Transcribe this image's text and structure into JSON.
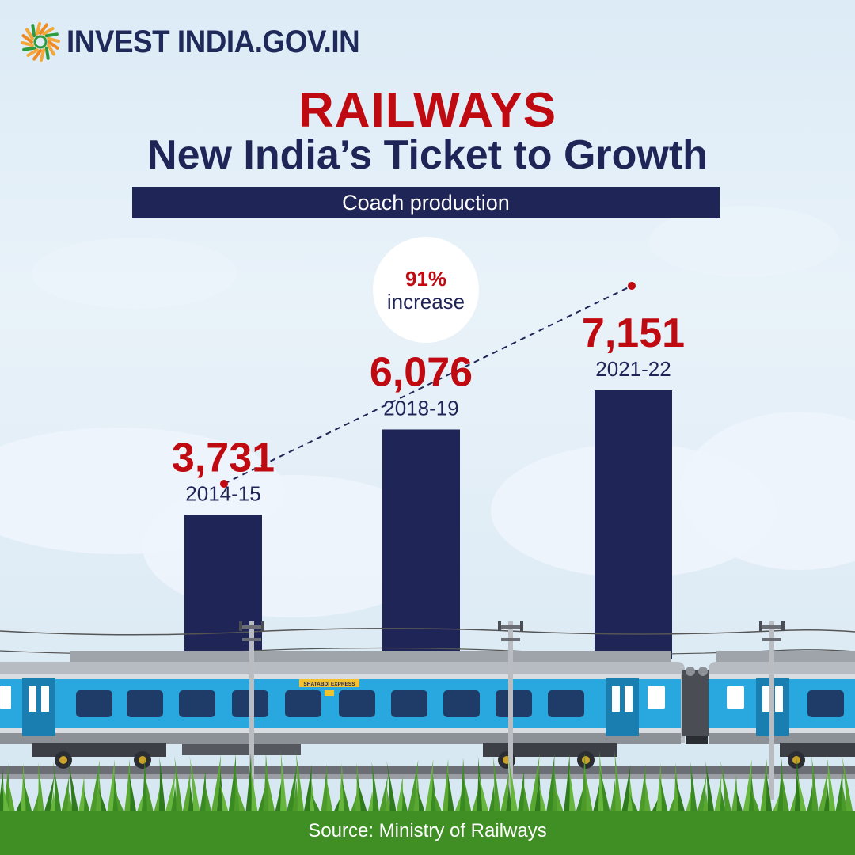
{
  "header": {
    "logo_text": "INVEST INDIA.GOV.IN",
    "logo_icon": "sun-logo-icon"
  },
  "title": "RAILWAYS",
  "subtitle": "New India’s Ticket to Growth",
  "banner": "Coach production",
  "badge": {
    "percent": "91%",
    "text": "increase"
  },
  "chart_data": {
    "type": "bar",
    "title": "Coach production",
    "categories": [
      "2014-15",
      "2018-19",
      "2021-22"
    ],
    "values": [
      3731,
      6076,
      7151
    ],
    "value_labels": [
      "3,731",
      "6,076",
      "7,151"
    ],
    "xlabel": "",
    "ylabel": "",
    "ylim": [
      0,
      8000
    ],
    "grid": false,
    "legend": "none",
    "trend_line": {
      "from": "2014-15",
      "to": "2021-22",
      "style": "dashed"
    },
    "annotation": "91% increase"
  },
  "train": {
    "sign_text": "SHATABDI EXPRESS"
  },
  "colors": {
    "bar": "#1f2657",
    "value_red": "#c00a12",
    "text_navy": "#1f2657",
    "train_blue": "#29a8df",
    "train_grey": "#b7bcc3",
    "grass": "#4c9a2a"
  },
  "source": "Source: Ministry of Railways"
}
